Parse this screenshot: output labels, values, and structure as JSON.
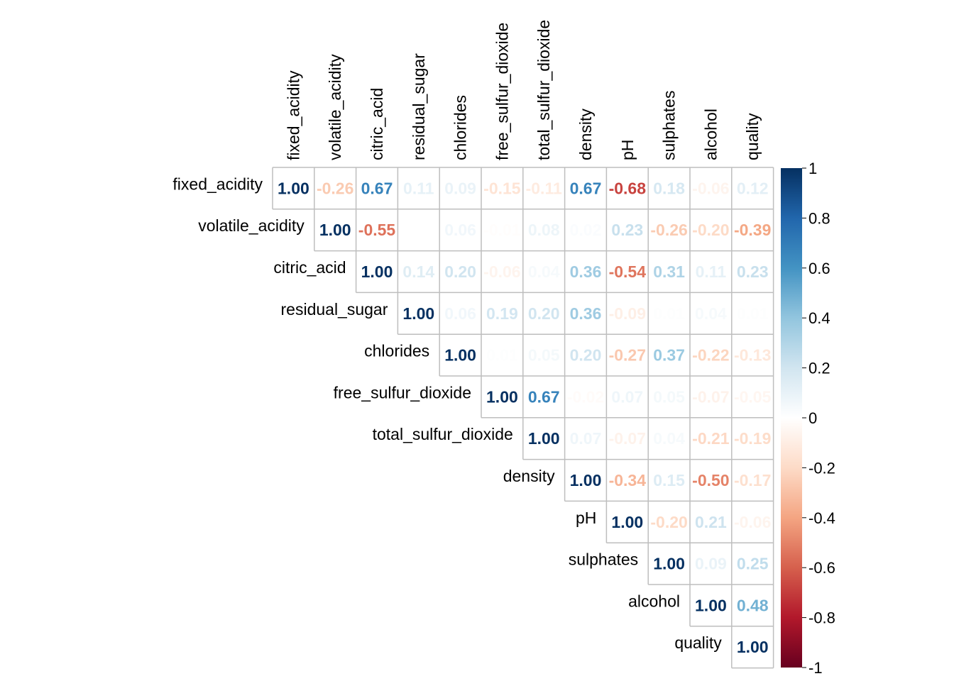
{
  "chart_data": {
    "type": "heatmap",
    "variables": [
      "fixed_acidity",
      "volatile_acidity",
      "citric_acid",
      "residual_sugar",
      "chlorides",
      "free_sulfur_dioxide",
      "total_sulfur_dioxide",
      "density",
      "pH",
      "sulphates",
      "alcohol",
      "quality"
    ],
    "values": [
      [
        1.0,
        -0.26,
        0.67,
        0.11,
        0.09,
        -0.15,
        -0.11,
        0.67,
        -0.68,
        0.18,
        -0.06,
        0.12
      ],
      [
        null,
        1.0,
        -0.55,
        0.0,
        0.06,
        -0.01,
        0.08,
        0.02,
        0.23,
        -0.26,
        -0.2,
        -0.39
      ],
      [
        null,
        null,
        1.0,
        0.14,
        0.2,
        -0.06,
        0.04,
        0.36,
        -0.54,
        0.31,
        0.11,
        0.23
      ],
      [
        null,
        null,
        null,
        1.0,
        0.06,
        0.19,
        0.2,
        0.36,
        -0.09,
        0.01,
        0.04,
        0.01
      ],
      [
        null,
        null,
        null,
        null,
        1.0,
        0.01,
        0.05,
        0.2,
        -0.27,
        0.37,
        -0.22,
        -0.13
      ],
      [
        null,
        null,
        null,
        null,
        null,
        1.0,
        0.67,
        -0.02,
        0.07,
        0.05,
        -0.07,
        -0.05
      ],
      [
        null,
        null,
        null,
        null,
        null,
        null,
        1.0,
        0.07,
        -0.07,
        0.04,
        -0.21,
        -0.19
      ],
      [
        null,
        null,
        null,
        null,
        null,
        null,
        null,
        1.0,
        -0.34,
        0.15,
        -0.5,
        -0.17
      ],
      [
        null,
        null,
        null,
        null,
        null,
        null,
        null,
        null,
        1.0,
        -0.2,
        0.21,
        -0.06
      ],
      [
        null,
        null,
        null,
        null,
        null,
        null,
        null,
        null,
        null,
        1.0,
        0.09,
        0.25
      ],
      [
        null,
        null,
        null,
        null,
        null,
        null,
        null,
        null,
        null,
        null,
        1.0,
        0.48
      ],
      [
        null,
        null,
        null,
        null,
        null,
        null,
        null,
        null,
        null,
        null,
        null,
        1.0
      ]
    ],
    "colorbar": {
      "min": -1,
      "max": 1,
      "ticks": [
        1,
        0.8,
        0.6,
        0.4,
        0.2,
        0,
        -0.2,
        -0.4,
        -0.6,
        -0.8,
        -1
      ],
      "tick_labels": [
        "1",
        "0.8",
        "0.6",
        "0.4",
        "0.2",
        "0",
        "-0.2",
        "-0.4",
        "-0.6",
        "-0.8",
        "-1"
      ],
      "colors_low_to_high": [
        "#67001f",
        "#b2182b",
        "#d6604d",
        "#f4a582",
        "#fddbc7",
        "#ffffff",
        "#d1e5f0",
        "#92c5de",
        "#4393c3",
        "#2166ac",
        "#053061"
      ]
    },
    "layout": "upper-triangle",
    "legend": "right"
  }
}
